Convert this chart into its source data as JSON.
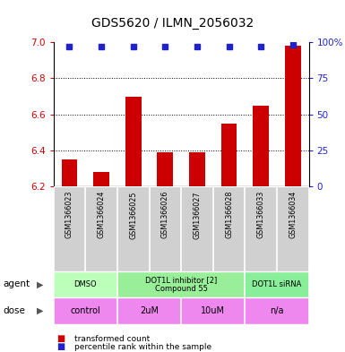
{
  "title": "GDS5620 / ILMN_2056032",
  "samples": [
    "GSM1366023",
    "GSM1366024",
    "GSM1366025",
    "GSM1366026",
    "GSM1366027",
    "GSM1366028",
    "GSM1366033",
    "GSM1366034"
  ],
  "bar_values": [
    6.35,
    6.28,
    6.7,
    6.39,
    6.39,
    6.55,
    6.65,
    6.98
  ],
  "dot_values": [
    97,
    97,
    97,
    97,
    97,
    97,
    97,
    98
  ],
  "ylim_left": [
    6.2,
    7.0
  ],
  "ylim_right": [
    0,
    100
  ],
  "yticks_left": [
    6.2,
    6.4,
    6.6,
    6.8,
    7.0
  ],
  "yticks_right": [
    0,
    25,
    50,
    75,
    100
  ],
  "bar_color": "#cc0000",
  "dot_color": "#2222cc",
  "bar_width": 0.5,
  "agent_data": [
    {
      "start": 0,
      "end": 2,
      "color": "#bbffbb",
      "label": "DMSO"
    },
    {
      "start": 2,
      "end": 6,
      "color": "#99ee99",
      "label": "DOT1L inhibitor [2]\nCompound 55"
    },
    {
      "start": 6,
      "end": 8,
      "color": "#88ee99",
      "label": "DOT1L siRNA"
    }
  ],
  "dose_data": [
    {
      "start": 0,
      "end": 2,
      "color": "#ee88ee",
      "label": "control"
    },
    {
      "start": 2,
      "end": 4,
      "color": "#ee88ee",
      "label": "2uM"
    },
    {
      "start": 4,
      "end": 6,
      "color": "#ee88ee",
      "label": "10uM"
    },
    {
      "start": 6,
      "end": 8,
      "color": "#ee88ee",
      "label": "n/a"
    }
  ],
  "left_tick_color": "#cc0000",
  "right_tick_color": "#2222cc",
  "legend_items": [
    "transformed count",
    "percentile rank within the sample"
  ],
  "legend_colors": [
    "#cc0000",
    "#2222cc"
  ],
  "grid_yticks": [
    6.4,
    6.6,
    6.8
  ]
}
